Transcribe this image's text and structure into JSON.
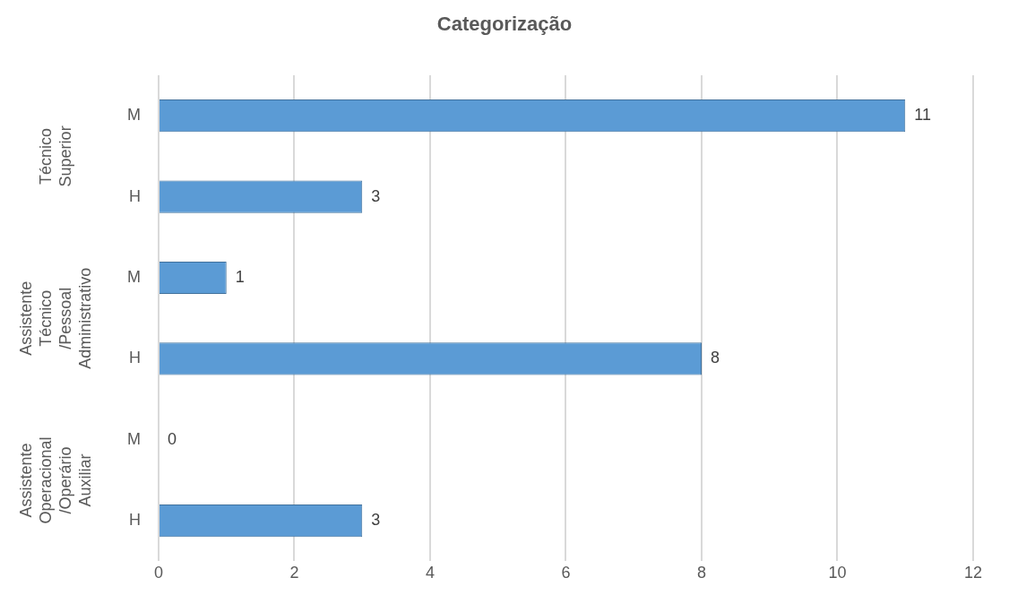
{
  "chart_data": {
    "type": "bar",
    "orientation": "horizontal",
    "title": "Categorização",
    "categories": [
      "M",
      "H",
      "M",
      "H",
      "M",
      "H"
    ],
    "values": [
      11,
      3,
      1,
      8,
      0,
      3
    ],
    "color": "#5b9bd5",
    "xlim": [
      0,
      12
    ],
    "xticks": [
      0,
      2,
      4,
      6,
      8,
      10,
      12
    ],
    "grid": "x",
    "data_labels": true,
    "legend": false,
    "annotations": [
      "Técnico Superior",
      "Assistente Técnico /Pessoal Administrativo",
      "Assistente Operacional /Operário Auxiliar"
    ]
  }
}
